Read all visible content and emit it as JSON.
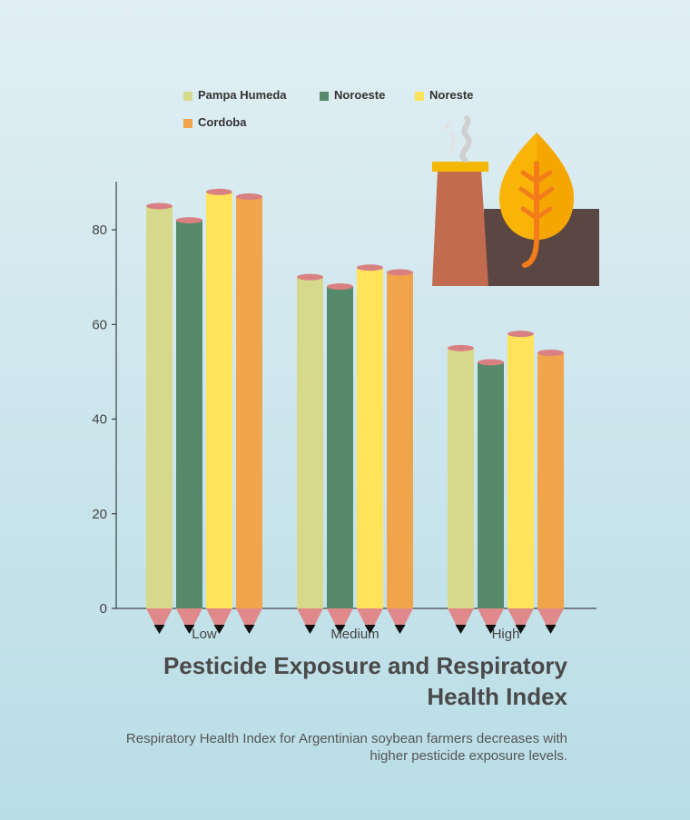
{
  "chart_data": {
    "type": "bar",
    "title": "Pesticide Exposure and Respiratory Health Index",
    "subtitle": "Respiratory Health Index for Argentinian soybean farmers decreases with higher pesticide exposure levels.",
    "categories": [
      "Low",
      "Medium",
      "High"
    ],
    "series": [
      {
        "name": "Pampa Humeda",
        "color": "#d6d98c",
        "values": [
          85,
          70,
          55
        ]
      },
      {
        "name": "Noroeste",
        "color": "#568a6a",
        "values": [
          82,
          68,
          52
        ]
      },
      {
        "name": "Noreste",
        "color": "#ffe35a",
        "values": [
          88,
          72,
          58
        ]
      },
      {
        "name": "Cordoba",
        "color": "#f0a44c",
        "values": [
          87,
          71,
          54
        ]
      }
    ],
    "ylim": [
      0,
      90
    ],
    "yticks": [
      0,
      20,
      40,
      60,
      80
    ],
    "legend_position": "top",
    "grid": false
  },
  "colors": {
    "pencil_tip": "#e0898a",
    "pencil_cap": "#d98083",
    "axis": "#222222"
  },
  "illustration": {
    "icons": [
      "factory-chimney-icon",
      "leaf-icon"
    ]
  }
}
